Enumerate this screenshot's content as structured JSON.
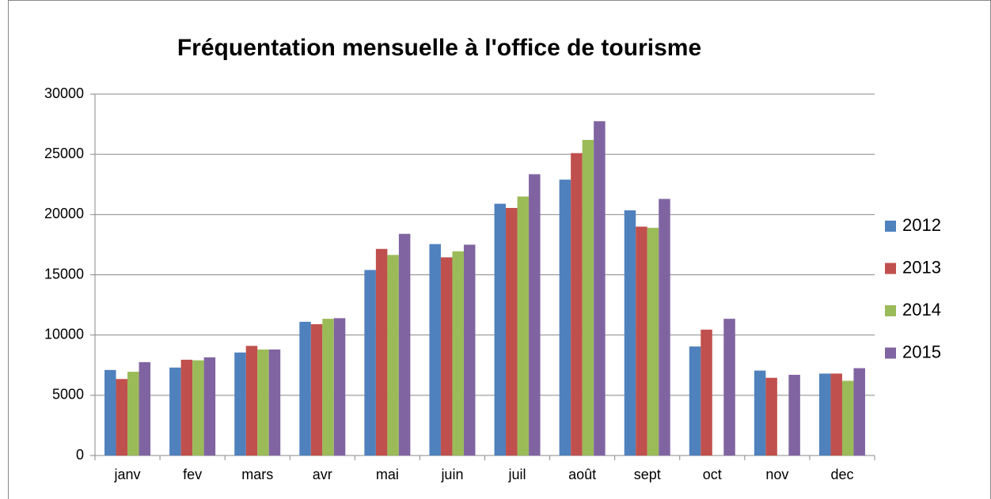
{
  "chart_data": {
    "type": "bar",
    "title": "Fréquentation mensuelle à l'office de tourisme",
    "categories": [
      "janv",
      "fev",
      "mars",
      "avr",
      "mai",
      "juin",
      "juil",
      "août",
      "sept",
      "oct",
      "nov",
      "dec"
    ],
    "series": [
      {
        "name": "2012",
        "color": "#4f81bd",
        "values": [
          7100,
          7300,
          8550,
          11100,
          15400,
          17550,
          20900,
          22900,
          20350,
          9050,
          7050,
          6800
        ]
      },
      {
        "name": "2013",
        "color": "#c0504d",
        "values": [
          6350,
          7950,
          9100,
          10900,
          17150,
          16450,
          20550,
          25100,
          19000,
          10450,
          6450,
          6800
        ]
      },
      {
        "name": "2014",
        "color": "#9bbb59",
        "values": [
          6950,
          7900,
          8800,
          11350,
          16650,
          16950,
          21500,
          26200,
          18900,
          null,
          null,
          6200
        ]
      },
      {
        "name": "2015",
        "color": "#8064a2",
        "values": [
          7750,
          8150,
          8800,
          11400,
          18400,
          17500,
          23350,
          27750,
          21300,
          11350,
          6700,
          7250
        ]
      }
    ],
    "ylim": [
      0,
      30000
    ],
    "yticks": [
      0,
      5000,
      10000,
      15000,
      20000,
      25000,
      30000
    ],
    "grid": true,
    "legend": "right"
  }
}
